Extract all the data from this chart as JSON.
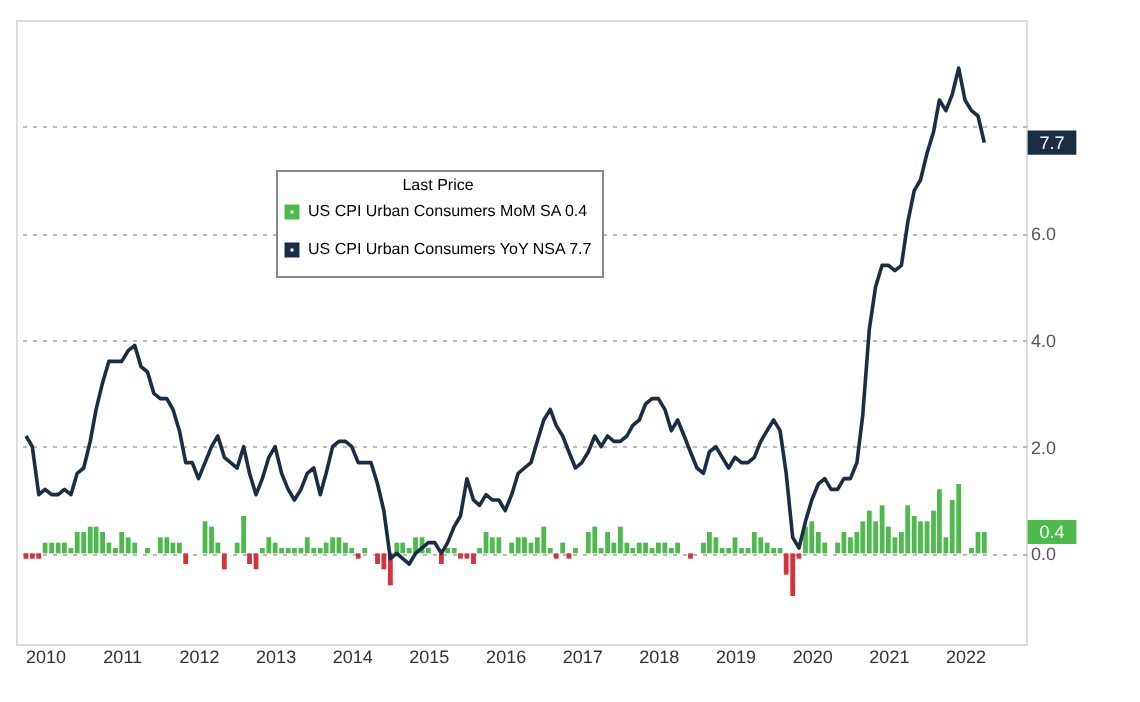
{
  "chart_data": {
    "type": "bar",
    "legend_title": "Last Price",
    "x": [
      "2010-04",
      "2010-05",
      "2010-06",
      "2010-07",
      "2010-08",
      "2010-09",
      "2010-10",
      "2010-11",
      "2010-12",
      "2011-01",
      "2011-02",
      "2011-03",
      "2011-04",
      "2011-05",
      "2011-06",
      "2011-07",
      "2011-08",
      "2011-09",
      "2011-10",
      "2011-11",
      "2011-12",
      "2012-01",
      "2012-02",
      "2012-03",
      "2012-04",
      "2012-05",
      "2012-06",
      "2012-07",
      "2012-08",
      "2012-09",
      "2012-10",
      "2012-11",
      "2012-12",
      "2013-01",
      "2013-02",
      "2013-03",
      "2013-04",
      "2013-05",
      "2013-06",
      "2013-07",
      "2013-08",
      "2013-09",
      "2013-10",
      "2013-11",
      "2013-12",
      "2014-01",
      "2014-02",
      "2014-03",
      "2014-04",
      "2014-05",
      "2014-06",
      "2014-07",
      "2014-08",
      "2014-09",
      "2014-10",
      "2014-11",
      "2014-12",
      "2015-01",
      "2015-02",
      "2015-03",
      "2015-04",
      "2015-05",
      "2015-06",
      "2015-07",
      "2015-08",
      "2015-09",
      "2015-10",
      "2015-11",
      "2015-12",
      "2016-01",
      "2016-02",
      "2016-03",
      "2016-04",
      "2016-05",
      "2016-06",
      "2016-07",
      "2016-08",
      "2016-09",
      "2016-10",
      "2016-11",
      "2016-12",
      "2017-01",
      "2017-02",
      "2017-03",
      "2017-04",
      "2017-05",
      "2017-06",
      "2017-07",
      "2017-08",
      "2017-09",
      "2017-10",
      "2017-11",
      "2017-12",
      "2018-01",
      "2018-02",
      "2018-03",
      "2018-04",
      "2018-05",
      "2018-06",
      "2018-07",
      "2018-08",
      "2018-09",
      "2018-10",
      "2018-11",
      "2018-12",
      "2019-01",
      "2019-02",
      "2019-03",
      "2019-04",
      "2019-05",
      "2019-06",
      "2019-07",
      "2019-08",
      "2019-09",
      "2019-10",
      "2019-11",
      "2019-12",
      "2020-01",
      "2020-02",
      "2020-03",
      "2020-04",
      "2020-05",
      "2020-06",
      "2020-07",
      "2020-08",
      "2020-09",
      "2020-10",
      "2020-11",
      "2020-12",
      "2021-01",
      "2021-02",
      "2021-03",
      "2021-04",
      "2021-05",
      "2021-06",
      "2021-07",
      "2021-08",
      "2021-09",
      "2021-10",
      "2021-11",
      "2021-12",
      "2022-01",
      "2022-02",
      "2022-03",
      "2022-04",
      "2022-05",
      "2022-06",
      "2022-07",
      "2022-08",
      "2022-09",
      "2022-10"
    ],
    "series": [
      {
        "name": "US CPI Urban Consumers MoM SA  0.4",
        "color": "#4cbb4c",
        "values": [
          -0.1,
          -0.1,
          -0.1,
          0.2,
          0.2,
          0.2,
          0.2,
          0.1,
          0.4,
          0.4,
          0.5,
          0.5,
          0.4,
          0.2,
          0.1,
          0.4,
          0.3,
          0.2,
          0.0,
          0.1,
          0.0,
          0.3,
          0.3,
          0.2,
          0.2,
          -0.2,
          0.0,
          0.0,
          0.6,
          0.5,
          0.2,
          -0.3,
          0.0,
          0.2,
          0.7,
          -0.2,
          -0.3,
          0.1,
          0.3,
          0.2,
          0.1,
          0.1,
          0.1,
          0.1,
          0.3,
          0.1,
          0.1,
          0.2,
          0.3,
          0.3,
          0.2,
          0.1,
          -0.1,
          0.1,
          0.0,
          -0.2,
          -0.3,
          -0.6,
          0.2,
          0.2,
          0.1,
          0.3,
          0.3,
          0.1,
          0.0,
          -0.2,
          0.1,
          0.1,
          -0.1,
          -0.1,
          -0.2,
          0.1,
          0.4,
          0.3,
          0.3,
          0.0,
          0.2,
          0.3,
          0.3,
          0.2,
          0.3,
          0.5,
          0.1,
          -0.1,
          0.2,
          -0.1,
          0.1,
          0.0,
          0.4,
          0.5,
          0.1,
          0.4,
          0.2,
          0.5,
          0.2,
          0.1,
          0.2,
          0.2,
          0.1,
          0.2,
          0.2,
          0.1,
          0.2,
          0.0,
          -0.1,
          0.0,
          0.2,
          0.4,
          0.3,
          0.1,
          0.1,
          0.3,
          0.1,
          0.1,
          0.4,
          0.3,
          0.2,
          0.1,
          0.1,
          -0.4,
          -0.8,
          -0.1,
          0.5,
          0.6,
          0.4,
          0.2,
          0.0,
          0.2,
          0.4,
          0.3,
          0.4,
          0.6,
          0.8,
          0.6,
          0.9,
          0.5,
          0.3,
          0.4,
          0.9,
          0.7,
          0.6,
          0.6,
          0.8,
          1.2,
          0.3,
          1.0,
          1.3,
          0.0,
          0.1,
          0.4,
          0.4
        ],
        "colors": [
          "#d6323c",
          "#d6323c",
          "#d6323c",
          "#4cbb4c",
          "#4cbb4c",
          "#4cbb4c",
          "#4cbb4c",
          "#4cbb4c",
          "#4cbb4c",
          "#4cbb4c",
          "#4cbb4c",
          "#4cbb4c",
          "#4cbb4c",
          "#4cbb4c",
          "#4cbb4c",
          "#4cbb4c",
          "#4cbb4c",
          "#4cbb4c",
          "#4cbb4c",
          "#4cbb4c",
          "#4cbb4c",
          "#4cbb4c",
          "#4cbb4c",
          "#4cbb4c",
          "#4cbb4c",
          "#d6323c",
          "#4cbb4c",
          "#4cbb4c",
          "#4cbb4c",
          "#4cbb4c",
          "#4cbb4c",
          "#d6323c",
          "#4cbb4c",
          "#4cbb4c",
          "#4cbb4c",
          "#d6323c",
          "#d6323c",
          "#4cbb4c",
          "#4cbb4c",
          "#4cbb4c",
          "#4cbb4c",
          "#4cbb4c",
          "#4cbb4c",
          "#4cbb4c",
          "#4cbb4c",
          "#4cbb4c",
          "#4cbb4c",
          "#4cbb4c",
          "#4cbb4c",
          "#4cbb4c",
          "#4cbb4c",
          "#4cbb4c",
          "#d6323c",
          "#4cbb4c",
          "#4cbb4c",
          "#d6323c",
          "#d6323c",
          "#d6323c",
          "#4cbb4c",
          "#4cbb4c",
          "#4cbb4c",
          "#4cbb4c",
          "#4cbb4c",
          "#4cbb4c",
          "#4cbb4c",
          "#d6323c",
          "#4cbb4c",
          "#4cbb4c",
          "#d6323c",
          "#d6323c",
          "#d6323c",
          "#4cbb4c",
          "#4cbb4c",
          "#4cbb4c",
          "#4cbb4c",
          "#4cbb4c",
          "#4cbb4c",
          "#4cbb4c",
          "#4cbb4c",
          "#4cbb4c",
          "#4cbb4c",
          "#4cbb4c",
          "#4cbb4c",
          "#d6323c",
          "#4cbb4c",
          "#d6323c",
          "#4cbb4c",
          "#4cbb4c",
          "#4cbb4c",
          "#4cbb4c",
          "#4cbb4c",
          "#4cbb4c",
          "#4cbb4c",
          "#4cbb4c",
          "#4cbb4c",
          "#4cbb4c",
          "#4cbb4c",
          "#4cbb4c",
          "#4cbb4c",
          "#4cbb4c",
          "#4cbb4c",
          "#4cbb4c",
          "#4cbb4c",
          "#4cbb4c",
          "#d6323c",
          "#4cbb4c",
          "#4cbb4c",
          "#4cbb4c",
          "#4cbb4c",
          "#4cbb4c",
          "#4cbb4c",
          "#4cbb4c",
          "#4cbb4c",
          "#4cbb4c",
          "#4cbb4c",
          "#4cbb4c",
          "#4cbb4c",
          "#4cbb4c",
          "#4cbb4c",
          "#d6323c",
          "#d6323c",
          "#d6323c",
          "#4cbb4c",
          "#4cbb4c",
          "#4cbb4c",
          "#4cbb4c",
          "#4cbb4c",
          "#4cbb4c",
          "#4cbb4c",
          "#4cbb4c",
          "#4cbb4c",
          "#4cbb4c",
          "#4cbb4c",
          "#4cbb4c",
          "#4cbb4c",
          "#4cbb4c",
          "#4cbb4c",
          "#4cbb4c",
          "#4cbb4c",
          "#4cbb4c",
          "#4cbb4c",
          "#4cbb4c",
          "#4cbb4c",
          "#4cbb4c",
          "#4cbb4c",
          "#4cbb4c",
          "#4cbb4c",
          "#4cbb4c",
          "#4cbb4c",
          "#4cbb4c",
          "#4cbb4c"
        ]
      },
      {
        "name": "US CPI Urban Consumers YoY NSA 7.7",
        "type": "line",
        "color": "#1b2d45",
        "values": [
          2.2,
          2.0,
          1.1,
          1.2,
          1.1,
          1.1,
          1.2,
          1.1,
          1.5,
          1.6,
          2.1,
          2.7,
          3.2,
          3.6,
          3.6,
          3.6,
          3.8,
          3.9,
          3.5,
          3.4,
          3.0,
          2.9,
          2.9,
          2.7,
          2.3,
          1.7,
          1.7,
          1.4,
          1.7,
          2.0,
          2.2,
          1.8,
          1.7,
          1.6,
          2.0,
          1.5,
          1.1,
          1.4,
          1.8,
          2.0,
          1.5,
          1.2,
          1.0,
          1.2,
          1.5,
          1.6,
          1.1,
          1.5,
          2.0,
          2.1,
          2.1,
          2.0,
          1.7,
          1.7,
          1.7,
          1.3,
          0.8,
          -0.1,
          0.0,
          -0.1,
          -0.2,
          0.0,
          0.1,
          0.2,
          0.2,
          0.0,
          0.2,
          0.5,
          0.7,
          1.4,
          1.0,
          0.9,
          1.1,
          1.0,
          1.0,
          0.8,
          1.1,
          1.5,
          1.6,
          1.7,
          2.1,
          2.5,
          2.7,
          2.4,
          2.2,
          1.9,
          1.6,
          1.7,
          1.9,
          2.2,
          2.0,
          2.2,
          2.1,
          2.1,
          2.2,
          2.4,
          2.5,
          2.8,
          2.9,
          2.9,
          2.7,
          2.3,
          2.5,
          2.2,
          1.9,
          1.6,
          1.5,
          1.9,
          2.0,
          1.8,
          1.6,
          1.8,
          1.7,
          1.7,
          1.8,
          2.1,
          2.3,
          2.5,
          2.3,
          1.5,
          0.3,
          0.1,
          0.6,
          1.0,
          1.3,
          1.4,
          1.2,
          1.2,
          1.4,
          1.4,
          1.7,
          2.6,
          4.2,
          5.0,
          5.4,
          5.4,
          5.3,
          5.4,
          6.2,
          6.8,
          7.0,
          7.5,
          7.9,
          8.5,
          8.3,
          8.6,
          9.1,
          8.5,
          8.3,
          8.2,
          7.7
        ]
      }
    ],
    "xlim": [
      "2010-04",
      "2023-03"
    ],
    "xticks": [
      {
        "value": "2010-07",
        "label": "2010"
      },
      {
        "value": "2011-07",
        "label": "2011"
      },
      {
        "value": "2012-07",
        "label": "2012"
      },
      {
        "value": "2013-07",
        "label": "2013"
      },
      {
        "value": "2014-07",
        "label": "2014"
      },
      {
        "value": "2015-07",
        "label": "2015"
      },
      {
        "value": "2016-07",
        "label": "2016"
      },
      {
        "value": "2017-07",
        "label": "2017"
      },
      {
        "value": "2018-07",
        "label": "2018"
      },
      {
        "value": "2019-07",
        "label": "2019"
      },
      {
        "value": "2020-07",
        "label": "2020"
      },
      {
        "value": "2021-07",
        "label": "2021"
      },
      {
        "value": "2022-07",
        "label": "2022"
      }
    ],
    "ylim": [
      -1.7,
      10
    ],
    "yticks": [
      {
        "value": 0,
        "label": "0.0"
      },
      {
        "value": 2,
        "label": "2.0"
      },
      {
        "value": 4,
        "label": "4.0"
      },
      {
        "value": 6,
        "label": "6.0"
      },
      {
        "value": 8,
        "label": null
      }
    ],
    "annotations": [
      "0.4",
      "7.7"
    ],
    "grid": "y",
    "legend": "top"
  }
}
